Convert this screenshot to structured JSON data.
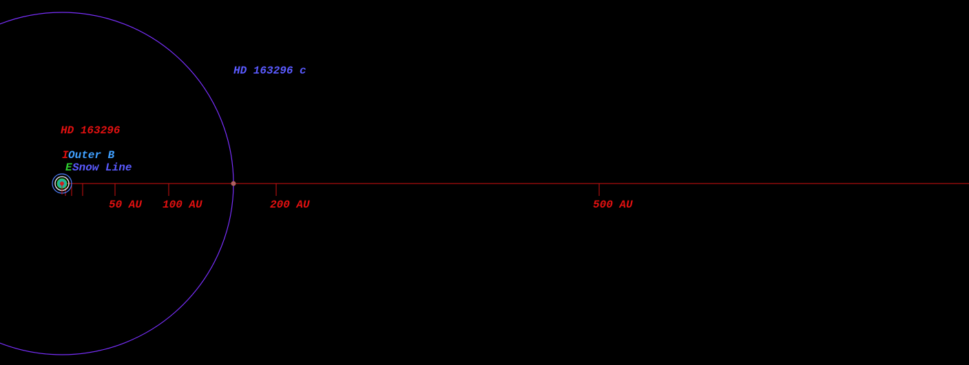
{
  "planet_label": "HD 163296 c",
  "star_label": "HD 163296",
  "zone_labels": [
    {
      "initial": "I",
      "text": "Outer B"
    },
    {
      "initial": "E",
      "text": "Snow Line"
    }
  ],
  "scale_labels": [
    "50 AU",
    "100 AU",
    "200 AU",
    "500 AU"
  ]
}
